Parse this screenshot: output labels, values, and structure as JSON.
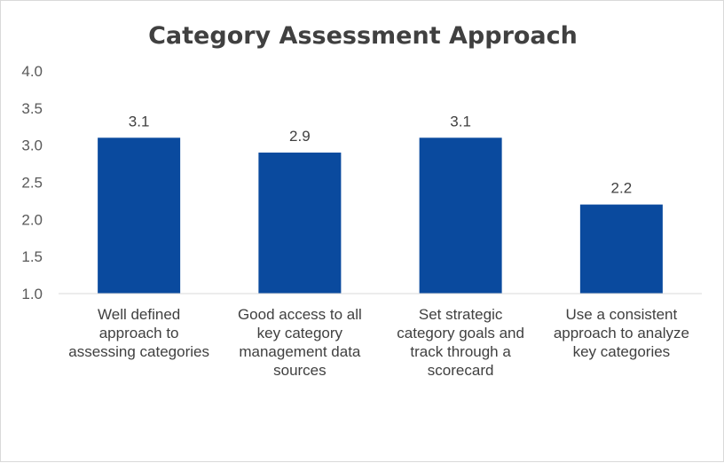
{
  "chart_data": {
    "type": "bar",
    "title": "Category Assessment Approach",
    "categories": [
      [
        "Well defined",
        "approach to",
        "assessing categories"
      ],
      [
        "Good access to all",
        "key category",
        "management data",
        "sources"
      ],
      [
        "Set strategic",
        "category goals and",
        "track through a",
        "scorecard"
      ],
      [
        "Use a consistent",
        "approach to analyze",
        "key categories"
      ]
    ],
    "values": [
      3.1,
      2.9,
      3.1,
      2.2
    ],
    "data_labels": [
      "3.1",
      "2.9",
      "3.1",
      "2.2"
    ],
    "y_ticks": [
      "1.0",
      "1.5",
      "2.0",
      "2.5",
      "3.0",
      "3.5",
      "4.0"
    ],
    "ylim": [
      1.0,
      4.0
    ],
    "grid": false,
    "legend": "none",
    "bar_color": "#0a4a9e"
  }
}
